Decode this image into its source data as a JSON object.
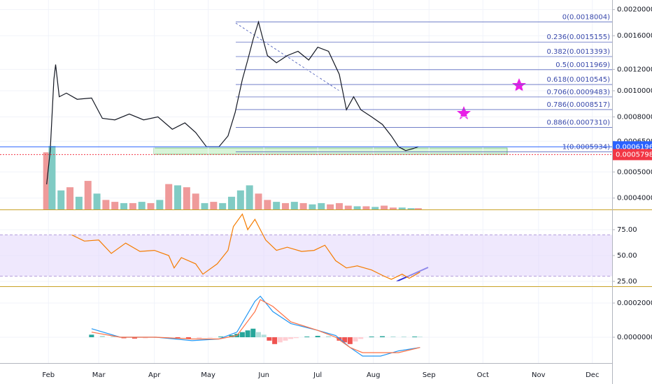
{
  "chart_data": [
    {
      "type": "line",
      "log_scale": true,
      "xlim": [
        -27,
        314
      ],
      "ylim": [
        0.000363,
        0.00217
      ],
      "yticks": [
        {
          "value": 0.002,
          "label": "0.0020000"
        },
        {
          "value": 0.0016,
          "label": "0.0016000"
        },
        {
          "value": 0.0012,
          "label": "0.0012000"
        },
        {
          "value": 0.001,
          "label": "0.0010000"
        },
        {
          "value": 0.0008,
          "label": "0.0008000"
        },
        {
          "value": 0.00065,
          "label": "0.0006500"
        },
        {
          "value": 0.0005,
          "label": "0.0005000"
        },
        {
          "value": 0.0004,
          "label": "0.0004000"
        }
      ],
      "x": [
        -1,
        1,
        3,
        4,
        6,
        10,
        16,
        24,
        30,
        37,
        45,
        53,
        61,
        69,
        76,
        82,
        88,
        95,
        100,
        104,
        108,
        111,
        114,
        117,
        119,
        122,
        127,
        133,
        139,
        145,
        150,
        156,
        162,
        166,
        170,
        174,
        180,
        186,
        191,
        195,
        199,
        203,
        206
      ],
      "series": [
        {
          "color": "#131722",
          "values": [
            0.00045,
            0.0006,
            0.0011,
            0.00125,
            0.00095,
            0.00098,
            0.00093,
            0.00094,
            0.00079,
            0.00078,
            0.00082,
            0.00078,
            0.0008,
            0.00072,
            0.00076,
            0.0007,
            0.00062,
            0.00062,
            0.00068,
            0.00083,
            0.0011,
            0.0013,
            0.00155,
            0.0018,
            0.0016,
            0.00135,
            0.00127,
            0.00135,
            0.0014,
            0.0013,
            0.00145,
            0.0014,
            0.00115,
            0.00085,
            0.00095,
            0.00085,
            0.0008,
            0.00075,
            0.00068,
            0.00062,
            0.0006,
            0.00061,
            0.00062
          ]
        }
      ],
      "fib_levels": [
        {
          "value": 0.0018004,
          "label": "0(0.0018004)"
        },
        {
          "value": 0.0015155,
          "label": "0.236(0.0015155)"
        },
        {
          "value": 0.0013393,
          "label": "0.382(0.0013393)"
        },
        {
          "value": 0.0011969,
          "label": "0.5(0.0011969)"
        },
        {
          "value": 0.0010545,
          "label": "0.618(0.0010545)"
        },
        {
          "value": 0.0009483,
          "label": "0.706(0.0009483)"
        },
        {
          "value": 0.0008517,
          "label": "0.786(0.0008517)"
        },
        {
          "value": 0.000731,
          "label": "0.886(0.0007310)"
        },
        {
          "value": 0.0005934,
          "label": "1(0.0005934)"
        }
      ],
      "price_lines": [
        {
          "value": 0.0006196,
          "label": "0.0006196",
          "color": "#2962ff"
        },
        {
          "value": 0.0005798,
          "label": "0.0005798",
          "color": "#f23645"
        }
      ],
      "volume": {
        "ylim": [
          0,
          330
        ],
        "x": [
          -1,
          2,
          7,
          12,
          17,
          22,
          27,
          32,
          37,
          42,
          47,
          52,
          57,
          62,
          67,
          72,
          77,
          82,
          87,
          92,
          97,
          102,
          107,
          112,
          117,
          122,
          127,
          132,
          137,
          142,
          147,
          152,
          157,
          162,
          167,
          172,
          177,
          182,
          187,
          192,
          197,
          202,
          206
        ],
        "values": [
          90,
          100,
          30,
          35,
          20,
          45,
          25,
          15,
          12,
          10,
          10,
          12,
          10,
          15,
          40,
          38,
          35,
          25,
          10,
          12,
          10,
          20,
          30,
          38,
          25,
          15,
          12,
          10,
          12,
          10,
          8,
          10,
          8,
          10,
          6,
          5,
          5,
          4,
          6,
          3,
          3,
          2,
          2
        ],
        "colors": [
          "#ef9a9a",
          "#80cbc4",
          "#80cbc4",
          "#ef9a9a",
          "#80cbc4",
          "#ef9a9a",
          "#80cbc4",
          "#ef9a9a",
          "#ef9a9a",
          "#80cbc4",
          "#ef9a9a",
          "#80cbc4",
          "#ef9a9a",
          "#80cbc4",
          "#ef9a9a",
          "#80cbc4",
          "#ef9a9a",
          "#ef9a9a",
          "#80cbc4",
          "#ef9a9a",
          "#80cbc4",
          "#80cbc4",
          "#80cbc4",
          "#80cbc4",
          "#ef9a9a",
          "#ef9a9a",
          "#80cbc4",
          "#ef9a9a",
          "#80cbc4",
          "#ef9a9a",
          "#80cbc4",
          "#80cbc4",
          "#ef9a9a",
          "#ef9a9a",
          "#ef9a9a",
          "#80cbc4",
          "#ef9a9a",
          "#80cbc4",
          "#ef9a9a",
          "#ef9a9a",
          "#80cbc4",
          "#80cbc4",
          "#ef9a9a"
        ]
      }
    },
    {
      "type": "line",
      "xlim": [
        -27,
        314
      ],
      "ylim": [
        20.3,
        93.2
      ],
      "yticks": [
        {
          "value": 75,
          "label": "75.00"
        },
        {
          "value": 50,
          "label": "50.00"
        },
        {
          "value": 25,
          "label": "25.00"
        }
      ],
      "band": [
        30,
        70
      ],
      "band_color": "#e1d5fb",
      "x": [
        13,
        20,
        28,
        35,
        43,
        51,
        59,
        67,
        70,
        74,
        82,
        86,
        94,
        100,
        103,
        108,
        111,
        115,
        121,
        127,
        133,
        141,
        148,
        154,
        160,
        166,
        172,
        180,
        187,
        191,
        197,
        201,
        207
      ],
      "series": [
        {
          "color": "#f57c00",
          "values": [
            70,
            64,
            65,
            52,
            62,
            54,
            55,
            50,
            38,
            48,
            42,
            32,
            42,
            55,
            78,
            90,
            75,
            85,
            65,
            55,
            58,
            54,
            55,
            60,
            45,
            38,
            40,
            36,
            30,
            27,
            32,
            28,
            34
          ]
        }
      ]
    },
    {
      "type": "macd",
      "xlim": [
        -27,
        314
      ],
      "ylim": [
        -0.000151,
        0.00029
      ],
      "yticks": [
        {
          "value": 0.0002,
          "label": "0.0002000"
        },
        {
          "value": 0,
          "label": "0.0000000"
        }
      ],
      "xticks": [
        {
          "value": 0,
          "label": "Feb"
        },
        {
          "value": 28,
          "label": "Mar"
        },
        {
          "value": 59,
          "label": "Apr"
        },
        {
          "value": 89,
          "label": "May"
        },
        {
          "value": 120,
          "label": "Jun"
        },
        {
          "value": 150,
          "label": "Jul"
        },
        {
          "value": 181,
          "label": "Aug"
        },
        {
          "value": 212,
          "label": "Sep"
        },
        {
          "value": 242,
          "label": "Oct"
        },
        {
          "value": 273,
          "label": "Nov"
        },
        {
          "value": 303,
          "label": "Dec"
        }
      ],
      "x": [
        24,
        40,
        60,
        80,
        95,
        105,
        115,
        118,
        125,
        135,
        150,
        160,
        168,
        175,
        185,
        195,
        207
      ],
      "series": [
        {
          "color": "#2196f3",
          "values": [
            5e-05,
            0,
            0,
            -2e-05,
            -1e-05,
            3e-05,
            0.00021,
            0.00024,
            0.00015,
            8e-05,
            4e-05,
            1e-05,
            -6e-05,
            -0.00011,
            -0.00011,
            -8e-05,
            -6e-05
          ]
        },
        {
          "color": "#ff7043",
          "values": [
            3e-05,
            0,
            0,
            -1e-05,
            -1e-05,
            1e-05,
            0.00015,
            0.00022,
            0.00018,
            9e-05,
            4e-05,
            0,
            -6e-05,
            -9e-05,
            -9e-05,
            -9e-05,
            -6e-05
          ]
        }
      ],
      "histogram": {
        "x": [
          24,
          30,
          36,
          42,
          48,
          54,
          60,
          66,
          72,
          78,
          84,
          90,
          96,
          102,
          105,
          108,
          111,
          114,
          117,
          120,
          123,
          126,
          129,
          132,
          135,
          138,
          144,
          150,
          156,
          162,
          165,
          168,
          171,
          174,
          180,
          186,
          192,
          198,
          204,
          207
        ],
        "values": [
          1.5e-05,
          8e-06,
          4e-06,
          -6e-06,
          -8e-06,
          -6e-06,
          -4e-06,
          -3e-06,
          -5e-06,
          -8e-06,
          -6e-06,
          -3e-06,
          4e-06,
          1.2e-05,
          2e-05,
          3e-05,
          4e-05,
          5e-05,
          3e-05,
          1.5e-05,
          -2e-05,
          -4e-05,
          -3e-05,
          -2e-05,
          -1e-05,
          -5e-06,
          4e-06,
          8e-06,
          6e-06,
          -2e-05,
          -3e-05,
          -4e-05,
          -2.5e-05,
          -1e-05,
          4e-06,
          6e-06,
          5e-06,
          4e-06,
          4e-06,
          3e-06
        ]
      }
    }
  ]
}
